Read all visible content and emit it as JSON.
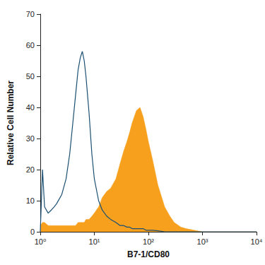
{
  "chart_data": {
    "type": "line",
    "xlabel": "B7-1/CD80",
    "ylabel": "Relative Cell Number",
    "log": "x",
    "grid": false,
    "x": [
      1,
      1.1,
      1.2,
      1.4,
      1.6,
      1.8,
      2,
      2.5,
      3,
      3.5,
      4,
      4.5,
      5,
      5.5,
      6,
      6.5,
      7,
      8,
      9,
      10,
      12,
      14,
      17,
      20,
      25,
      30,
      35,
      40,
      45,
      50,
      60,
      70,
      80,
      90,
      100,
      120,
      150,
      200,
      250,
      300,
      400,
      500,
      700,
      1000,
      10000
    ],
    "xlim": [
      1,
      10000
    ],
    "xticks": [
      {
        "value": 1,
        "label": "10⁰"
      },
      {
        "value": 10,
        "label": "10¹"
      },
      {
        "value": 100,
        "label": "10²"
      },
      {
        "value": 1000,
        "label": "10³"
      },
      {
        "value": 10000,
        "label": "10⁴"
      }
    ],
    "ylim": [
      0,
      70
    ],
    "yticks": [
      0,
      10,
      20,
      30,
      40,
      50,
      60,
      70
    ],
    "series": [
      {
        "type": "area",
        "color": "#f7a01e",
        "values": [
          2,
          3,
          3,
          2,
          2,
          2,
          2,
          2,
          2,
          2,
          2,
          2,
          3,
          3,
          3,
          3,
          4,
          4,
          5,
          6,
          8,
          11,
          13,
          14,
          17,
          22,
          26,
          29,
          32,
          35,
          39,
          40,
          37,
          33,
          29,
          23,
          15,
          8,
          5,
          3,
          1.5,
          1,
          0.5,
          0,
          0
        ]
      },
      {
        "type": "line",
        "color": "#1a4f72",
        "values": [
          0,
          20,
          8,
          6,
          7,
          8,
          9,
          12,
          17,
          25,
          35,
          44,
          52,
          56,
          58,
          55,
          50,
          38,
          25,
          17,
          10,
          7,
          5,
          4,
          3,
          2,
          2,
          1.5,
          1.5,
          1,
          1,
          1,
          1,
          0.5,
          0.5,
          0.5,
          0.3,
          0,
          0,
          0,
          0,
          0,
          0,
          0,
          0
        ]
      }
    ]
  }
}
